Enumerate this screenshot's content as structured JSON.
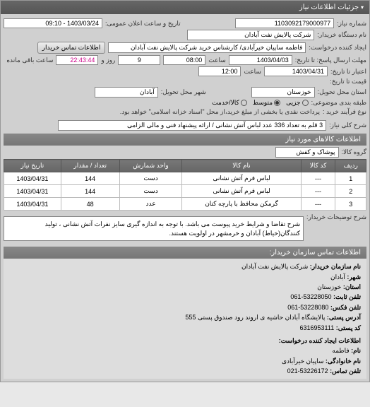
{
  "header": {
    "title": "جزئیات اطلاعات نیاز"
  },
  "top": {
    "request_no_label": "شماره نیاز:",
    "request_no": "1103092179000977",
    "announce_label": "تاریخ و ساعت اعلان عمومی:",
    "announce_value": "1403/03/24 - 09:10",
    "buyer_label": "نام دستگاه خریدار:",
    "buyer_value": "شرکت پالایش نفت آبادان",
    "creator_label": "ایجاد کننده درخواست:",
    "creator_value": "فاطمه ساپیان خیرآبادی/ کارشناس خرید شرکت پالایش نفت آبادان",
    "contact_btn": "اطلاعات تماس خریدار"
  },
  "dates": {
    "deadline_label": "مهلت ارسال پاسخ: تا تاریخ:",
    "deadline_date": "1403/04/03",
    "time_label": "ساعت",
    "deadline_time": "08:00",
    "days_label": "روز و",
    "days": "9",
    "remain_time": "22:43:44",
    "remain_label": "ساعت باقی مانده",
    "validity_label": "اعتبار تا تاریخ:",
    "validity_date": "1403/04/31",
    "validity_time": "12:00",
    "price_label": "قیمت تا تاریخ:"
  },
  "location": {
    "province_label": "استان محل تحویل:",
    "province": "خوزستان",
    "city_label": "شهر محل تحویل:",
    "city": "آبادان"
  },
  "classification": {
    "label": "طبقه بندی موضوعی:",
    "opt_partial": "جزیی",
    "opt_medium": "متوسط",
    "opt_credit": "کالا/خدمت",
    "selected": "medium"
  },
  "process": {
    "label": "نوع فرآیند خرید :",
    "text": "پرداخت نقدی یا بخشی از مبلغ خرید،از محل \"اسناد خزانه اسلامی\" خواهد بود."
  },
  "need": {
    "label": "شرح کلی نیاز:",
    "value": "3 قلم به تعداد 336 عدد لباس آتش نشانی / ارائه پیشنهاد فنی و مالی الزامی"
  },
  "goods_header": "اطلاعات کالاهای مورد نیاز",
  "group": {
    "label": "گروه کالا:",
    "value": "پوشاک و کفش"
  },
  "table": {
    "cols": [
      "ردیف",
      "کد کالا",
      "نام کالا",
      "واحد شمارش",
      "تعداد / مقدار",
      "تاریخ نیاز"
    ],
    "rows": [
      [
        "1",
        "---",
        "لباس فرم آتش نشانی",
        "دست",
        "144",
        "1403/04/31"
      ],
      [
        "2",
        "---",
        "لباس فرم آتش نشانی",
        "دست",
        "144",
        "1403/04/31"
      ],
      [
        "3",
        "---",
        "گرمکن محافظ با پارچه کتان",
        "عدد",
        "48",
        "1403/04/31"
      ]
    ]
  },
  "conditions": {
    "label": "شرح توضیحات خریدار:",
    "text": "شرح تقاضا و شرایط خرید پیوست می باشد. با توجه به اندازه گیری سایز نفرات آتش نشانی ، تولید کنندگان(خیاط) آبادان و خرمشهر در اولویت هستند."
  },
  "contact": {
    "header": "اطلاعات تماس سازمان خریدار:",
    "org_label": "نام سازمان خریدار:",
    "org": "شرکت پالایش نفت آبادان",
    "city_label": "شهر:",
    "city": "آبادان",
    "province_label": "استان:",
    "province": "خوزستان",
    "phone_label": "تلفن ثابت:",
    "phone": "53228050-061",
    "fax_label": "تلفن فکس:",
    "fax": "53228080-061",
    "address_label": "آدرس پستی:",
    "address": "پالایشگاه آبادان حاشیه ی اروند رود صندوق پستی 555",
    "postcode_label": "کد پستی:",
    "postcode": "6316953111",
    "creator_header": "اطلاعات ایجاد کننده درخواست:",
    "name_label": "نام:",
    "name": "فاطمه",
    "family_label": "نام خانوادگی:",
    "family": "ساپیان خیرآبادی",
    "contact_phone_label": "تلفن تماس:",
    "contact_phone": "53226172-021"
  }
}
